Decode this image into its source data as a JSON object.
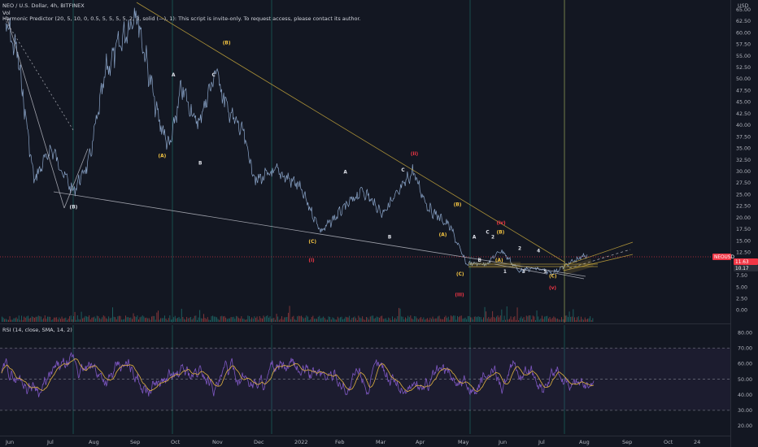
{
  "header": {
    "symbol_line": "NEO / U.S. Dollar, 4h, BITFINEX",
    "vol_label": "Vol",
    "indicator_line": "Harmonic Predictor (20, 5, 10, 0, 0.5, 5, 5, 5, 5, 2, 3, solid (—), 1): This script is invite-only. To request access, please contact its author."
  },
  "price_axis": {
    "currency": "USD",
    "ticks": [
      "65.00",
      "62.50",
      "60.00",
      "57.50",
      "55.00",
      "52.50",
      "50.00",
      "47.50",
      "45.00",
      "42.50",
      "40.00",
      "37.50",
      "35.00",
      "32.50",
      "30.00",
      "27.50",
      "25.00",
      "22.50",
      "20.00",
      "17.50",
      "15.00",
      "12.50",
      "10.00",
      "7.50",
      "5.00",
      "2.50",
      "0.00"
    ],
    "badges": [
      {
        "text": "NEOUSD",
        "value": 11.63,
        "color": "#f23645"
      },
      {
        "text": "11.63",
        "value": 11.63,
        "color": "#f23645"
      },
      {
        "text": "10.17",
        "value": 10.17,
        "color": "#2a2e39"
      }
    ]
  },
  "rsi_axis": {
    "title": "RSI (14, close, SMA, 14, 2)",
    "ticks": [
      "80.00",
      "70.00",
      "60.00",
      "50.00",
      "40.00",
      "30.00",
      "20.00"
    ]
  },
  "time_axis": {
    "labels": [
      "Jun",
      "Jul",
      "Aug",
      "Sep",
      "Oct",
      "Nov",
      "Dec",
      "2022",
      "Feb",
      "Mar",
      "Apr",
      "May",
      "Jun",
      "Jul",
      "Aug",
      "Sep",
      "Oct",
      "24"
    ]
  },
  "chart_data": [
    {
      "type": "line",
      "name": "price",
      "x": [
        "2021-06-01",
        "2021-06-10",
        "2021-06-22",
        "2021-07-05",
        "2021-07-21",
        "2021-08-02",
        "2021-08-15",
        "2021-08-26",
        "2021-09-06",
        "2021-09-22",
        "2021-10-01",
        "2021-10-10",
        "2021-10-22",
        "2021-11-05",
        "2021-11-12",
        "2021-11-25",
        "2021-12-04",
        "2021-12-20",
        "2022-01-05",
        "2022-01-22",
        "2022-02-08",
        "2022-02-22",
        "2022-03-08",
        "2022-03-20",
        "2022-03-31",
        "2022-04-12",
        "2022-04-28",
        "2022-05-10",
        "2022-05-25",
        "2022-06-05",
        "2022-06-18",
        "2022-07-01",
        "2022-07-13",
        "2022-07-25",
        "2022-08-08"
      ],
      "y": [
        62,
        55,
        28,
        35,
        25.5,
        32,
        52,
        58,
        65,
        42,
        35,
        48,
        40,
        52,
        44,
        38,
        28,
        30,
        27,
        17,
        22,
        26,
        21,
        25,
        30,
        22,
        18,
        10,
        10,
        13,
        8.5,
        9,
        8,
        10,
        12
      ],
      "ylim": [
        -2,
        66
      ]
    },
    {
      "type": "line",
      "name": "rsi",
      "series": [
        {
          "name": "RSI"
        },
        {
          "name": "SMA"
        }
      ],
      "y_range": [
        15,
        84
      ],
      "bands": [
        30,
        50,
        70
      ]
    }
  ],
  "annotations": [
    {
      "text": "(B)",
      "date": "2021-07-21",
      "price": 22,
      "color": "#e0e3eb"
    },
    {
      "text": "(A)",
      "date": "2021-09-25",
      "price": 33,
      "color": "#f5c542"
    },
    {
      "text": "A",
      "date": "2021-10-05",
      "price": 50.5,
      "color": "#e0e3eb"
    },
    {
      "text": "B",
      "date": "2021-10-25",
      "price": 31.5,
      "color": "#e0e3eb"
    },
    {
      "text": "C",
      "date": "2021-11-04",
      "price": 50.5,
      "color": "#e0e3eb"
    },
    {
      "text": "(B)",
      "date": "2021-11-12",
      "price": 57.5,
      "color": "#f5c542"
    },
    {
      "text": "(C)",
      "date": "2022-01-15",
      "price": 14.5,
      "color": "#f5c542"
    },
    {
      "text": "(i)",
      "date": "2022-01-15",
      "price": 10.5,
      "color": "#f23645"
    },
    {
      "text": "A",
      "date": "2022-02-10",
      "price": 29.5,
      "color": "#e0e3eb"
    },
    {
      "text": "B",
      "date": "2022-03-15",
      "price": 15.5,
      "color": "#e0e3eb"
    },
    {
      "text": "C",
      "date": "2022-03-25",
      "price": 30,
      "color": "#e0e3eb"
    },
    {
      "text": "(ii)",
      "date": "2022-04-01",
      "price": 33.5,
      "color": "#f23645"
    },
    {
      "text": "(A)",
      "date": "2022-04-22",
      "price": 16,
      "color": "#f5c542"
    },
    {
      "text": "(B)",
      "date": "2022-05-03",
      "price": 22.5,
      "color": "#f5c542"
    },
    {
      "text": "(C)",
      "date": "2022-05-05",
      "price": 7.5,
      "color": "#f5c542"
    },
    {
      "text": "(iii)",
      "date": "2022-05-04",
      "price": 3,
      "color": "#f23645"
    },
    {
      "text": "A",
      "date": "2022-05-17",
      "price": 15.5,
      "color": "#e0e3eb"
    },
    {
      "text": "B",
      "date": "2022-05-21",
      "price": 10.5,
      "color": "#e0e3eb"
    },
    {
      "text": "C",
      "date": "2022-05-27",
      "price": 16.5,
      "color": "#e0e3eb"
    },
    {
      "text": "2",
      "date": "2022-05-31",
      "price": 15.5,
      "color": "#e0e3eb"
    },
    {
      "text": "(B)",
      "date": "2022-06-04",
      "price": 16.5,
      "color": "#f5c542"
    },
    {
      "text": "(A)",
      "date": "2022-06-03",
      "price": 10.5,
      "color": "#f5c542"
    },
    {
      "text": "(iv)",
      "date": "2022-06-04",
      "price": 18.5,
      "color": "#f23645"
    },
    {
      "text": "1",
      "date": "2022-06-09",
      "price": 8,
      "color": "#e0e3eb"
    },
    {
      "text": "2",
      "date": "2022-06-20",
      "price": 13,
      "color": "#e0e3eb"
    },
    {
      "text": "3",
      "date": "2022-06-23",
      "price": 8,
      "color": "#e0e3eb"
    },
    {
      "text": "4",
      "date": "2022-07-04",
      "price": 12.5,
      "color": "#e0e3eb"
    },
    {
      "text": "5",
      "date": "2022-07-09",
      "price": 8,
      "color": "#e0e3eb"
    },
    {
      "text": "(C)",
      "date": "2022-07-13",
      "price": 7,
      "color": "#f5c542"
    },
    {
      "text": "(v)",
      "date": "2022-07-13",
      "price": 4.5,
      "color": "#f23645"
    }
  ]
}
